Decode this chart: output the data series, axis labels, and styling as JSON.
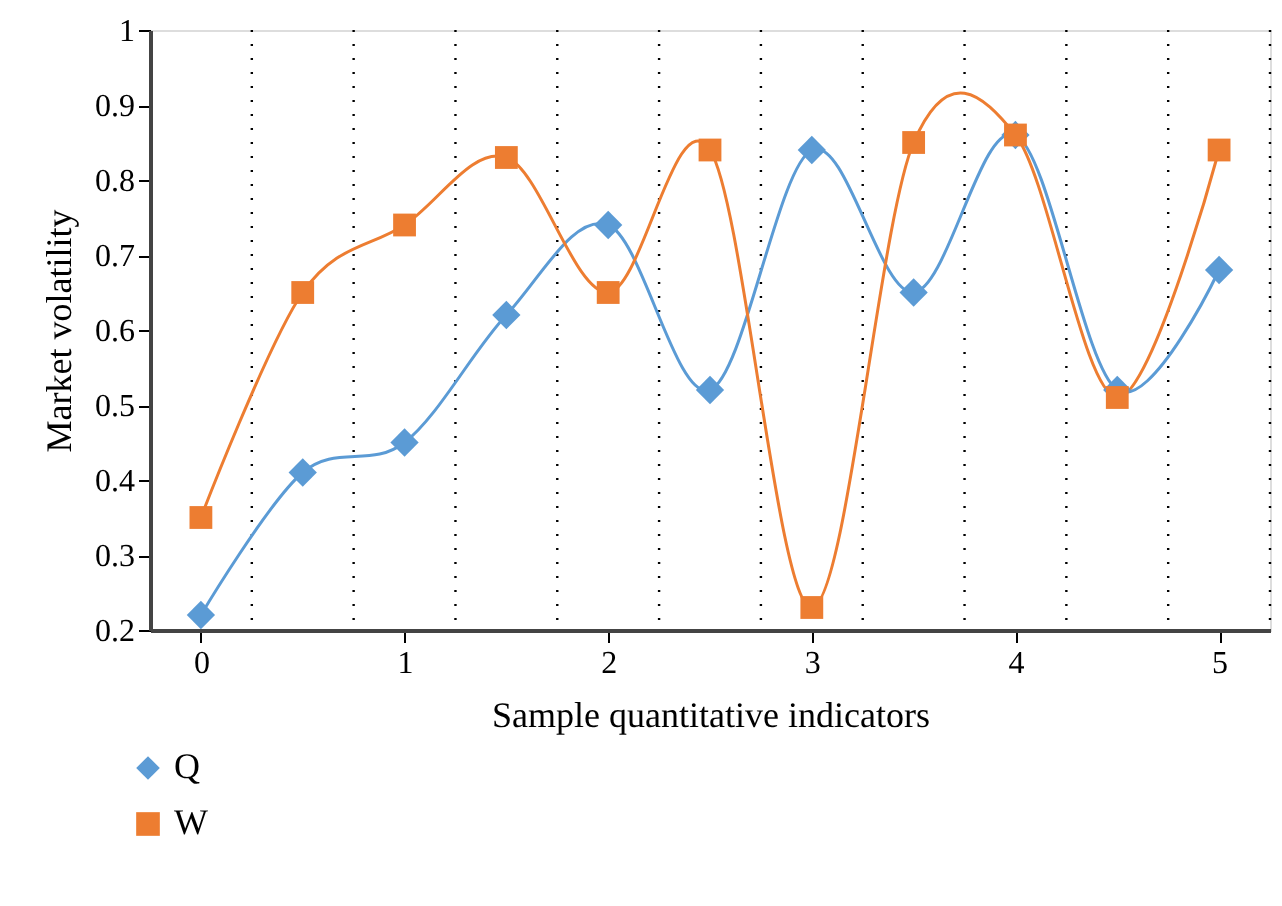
{
  "chart_data": {
    "type": "line",
    "xlabel": "Sample quantitative indicators",
    "ylabel": "Market volatility",
    "x": [
      0,
      0.5,
      1,
      1.5,
      2,
      2.5,
      3,
      3.5,
      4,
      4.5,
      5
    ],
    "series": [
      {
        "name": "Q",
        "color": "#5b9bd5",
        "marker": "diamond",
        "values": [
          0.22,
          0.41,
          0.45,
          0.62,
          0.74,
          0.52,
          0.84,
          0.65,
          0.86,
          0.52,
          0.68
        ]
      },
      {
        "name": "W",
        "color": "#ed7d31",
        "marker": "square",
        "values": [
          0.35,
          0.65,
          0.74,
          0.83,
          0.65,
          0.84,
          0.23,
          0.85,
          0.86,
          0.51,
          0.84
        ]
      }
    ],
    "xlim": [
      -0.25,
      5.25
    ],
    "xticks": [
      0,
      {
        "value": 0.25,
        "label": null
      },
      {
        "value": 0.75,
        "label": null
      },
      1,
      {
        "value": 1.25,
        "label": null
      },
      {
        "value": 1.75,
        "label": null
      },
      2,
      {
        "value": 2.25,
        "label": null
      },
      {
        "value": 2.75,
        "label": null
      },
      3,
      {
        "value": 3.25,
        "label": null
      },
      {
        "value": 3.75,
        "label": null
      },
      4,
      {
        "value": 4.25,
        "label": null
      },
      {
        "value": 4.75,
        "label": null
      },
      5,
      {
        "value": 5.25,
        "label": null
      }
    ],
    "ylim": [
      0.2,
      1
    ],
    "yticks": [
      0.2,
      0.3,
      0.4,
      0.5,
      0.6,
      0.7,
      0.8,
      0.9,
      1
    ],
    "grid": "x",
    "legend": "bottom left"
  }
}
